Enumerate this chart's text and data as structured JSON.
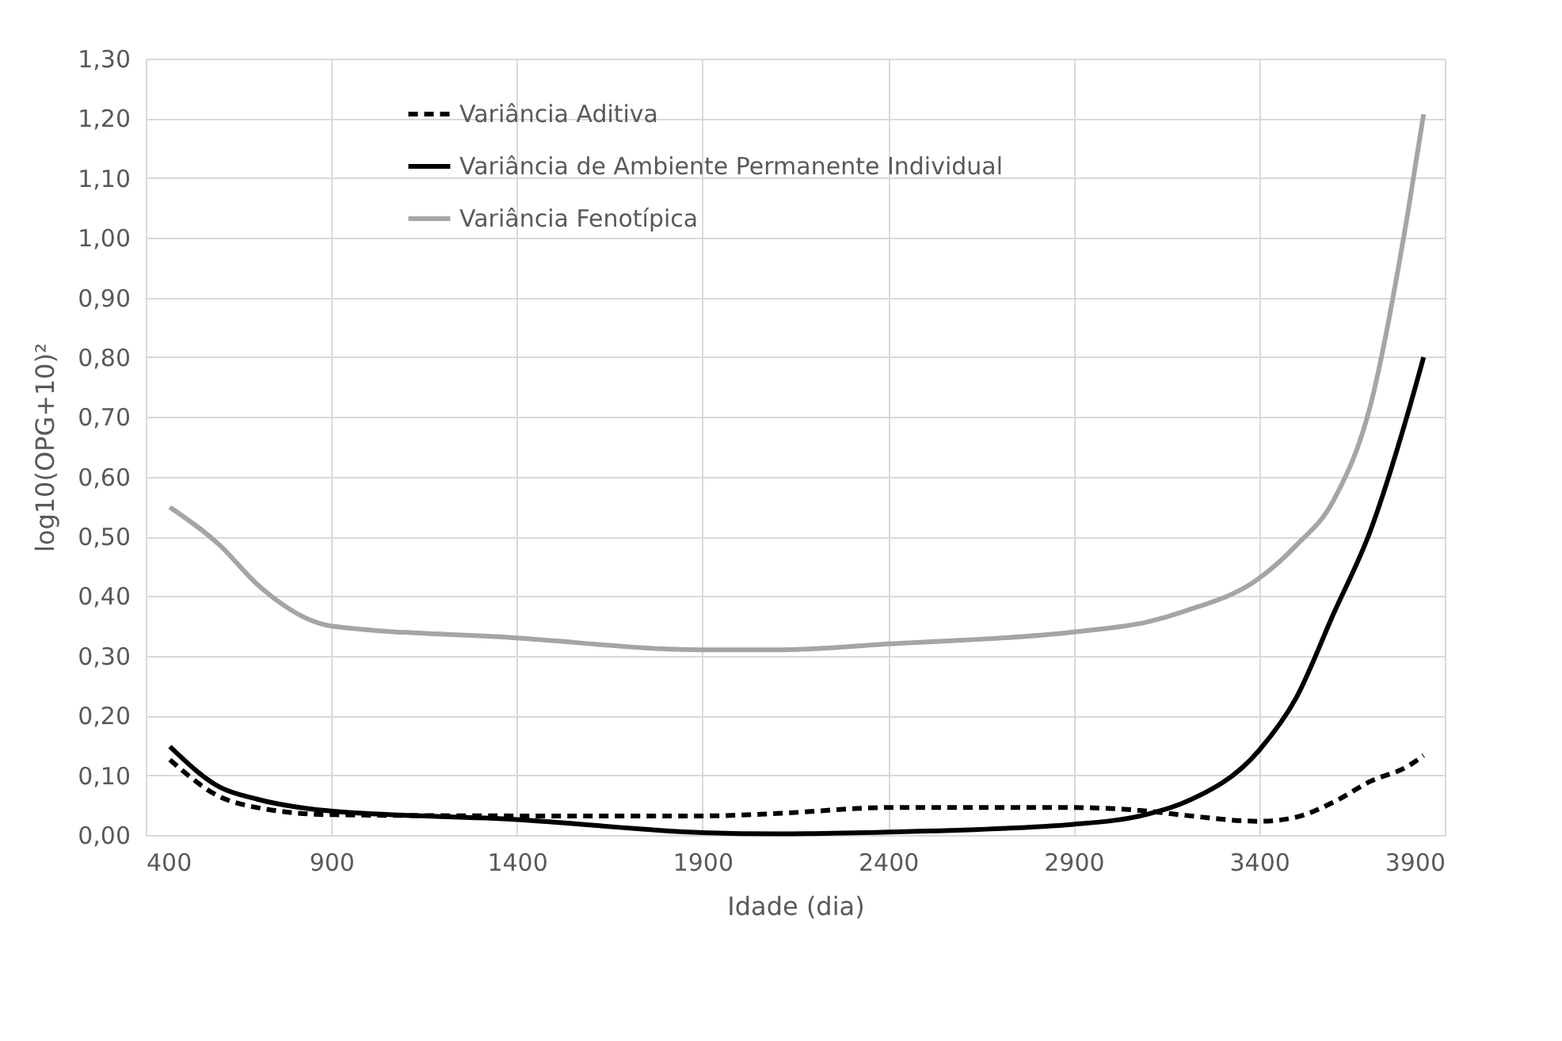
{
  "chart_data": {
    "type": "line",
    "xlabel": "Idade (dia)",
    "ylabel": "log10(OPG+10)²",
    "xlim": [
      400,
      3900
    ],
    "xticks": [
      400,
      900,
      1400,
      1900,
      2400,
      2900,
      3400,
      3900
    ],
    "ylim": [
      0,
      1.3
    ],
    "yticks": [
      {
        "value": 0,
        "label": "0,00"
      },
      {
        "value": 0.1,
        "label": "0,10"
      },
      {
        "value": 0.2,
        "label": "0,20"
      },
      {
        "value": 0.3,
        "label": "0,30"
      },
      {
        "value": 0.4,
        "label": "0,40"
      },
      {
        "value": 0.5,
        "label": "0,50"
      },
      {
        "value": 0.6,
        "label": "0,60"
      },
      {
        "value": 0.7,
        "label": "0,70"
      },
      {
        "value": 0.8,
        "label": "0,80"
      },
      {
        "value": 0.9,
        "label": "0,90"
      },
      {
        "value": 1.0,
        "label": "1,00"
      },
      {
        "value": 1.1,
        "label": "1,10"
      },
      {
        "value": 1.2,
        "label": "1,20"
      },
      {
        "value": 1.3,
        "label": "1,30"
      }
    ],
    "x": [
      465,
      600,
      700,
      900,
      1400,
      1900,
      2100,
      2400,
      2900,
      3100,
      3200,
      3400,
      3500,
      3600,
      3700,
      3800,
      3843
    ],
    "grid": true,
    "legend": "top",
    "marker": "none",
    "series": [
      {
        "name": "Variância Aditiva",
        "color": "#000000",
        "line_style": "dashed",
        "values": [
          0.126,
          0.064,
          0.046,
          0.034,
          0.032,
          0.032,
          0.036,
          0.046,
          0.046,
          0.04,
          0.033,
          0.023,
          0.03,
          0.055,
          0.09,
          0.115,
          0.133
        ]
      },
      {
        "name": "Variância de Ambiente Permanente Individual",
        "color": "#000000",
        "line_style": "solid",
        "values": [
          0.148,
          0.08,
          0.06,
          0.04,
          0.026,
          0.004,
          0.002,
          0.005,
          0.018,
          0.035,
          0.055,
          0.142,
          0.23,
          0.37,
          0.51,
          0.705,
          0.8
        ]
      },
      {
        "name": "Variância Fenotípica",
        "color": "#a5a5a5",
        "line_style": "solid",
        "values": [
          0.549,
          0.485,
          0.42,
          0.35,
          0.33,
          0.31,
          0.31,
          0.32,
          0.34,
          0.357,
          0.375,
          0.43,
          0.485,
          0.56,
          0.72,
          1.04,
          1.207
        ]
      }
    ]
  }
}
